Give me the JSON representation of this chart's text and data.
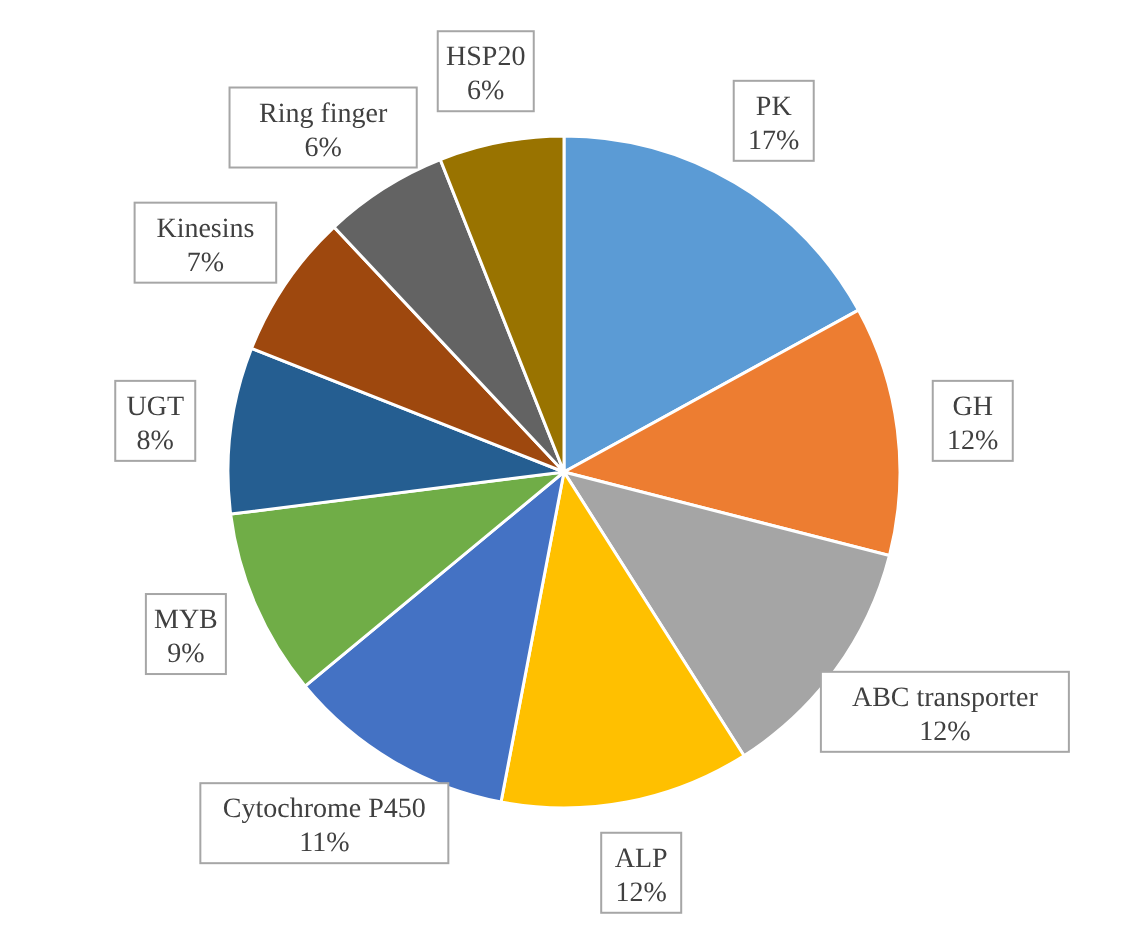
{
  "chart_data": {
    "type": "pie",
    "categories": [
      "PK",
      "GH",
      "ABC transporter",
      "ALP",
      "Cytochrome P450",
      "MYB",
      "UGT",
      "Kinesins",
      "Ring finger",
      "HSP20"
    ],
    "values": [
      17,
      12,
      12,
      12,
      11,
      9,
      8,
      7,
      6,
      6
    ],
    "value_labels": [
      "17%",
      "12%",
      "12%",
      "12%",
      "11%",
      "9%",
      "8%",
      "7%",
      "6%",
      "6%"
    ],
    "colors": [
      "#5b9bd5",
      "#ed7d31",
      "#a5a5a5",
      "#ffc000",
      "#4472c4",
      "#70ad47",
      "#255e91",
      "#9e480e",
      "#636363",
      "#997300"
    ]
  }
}
